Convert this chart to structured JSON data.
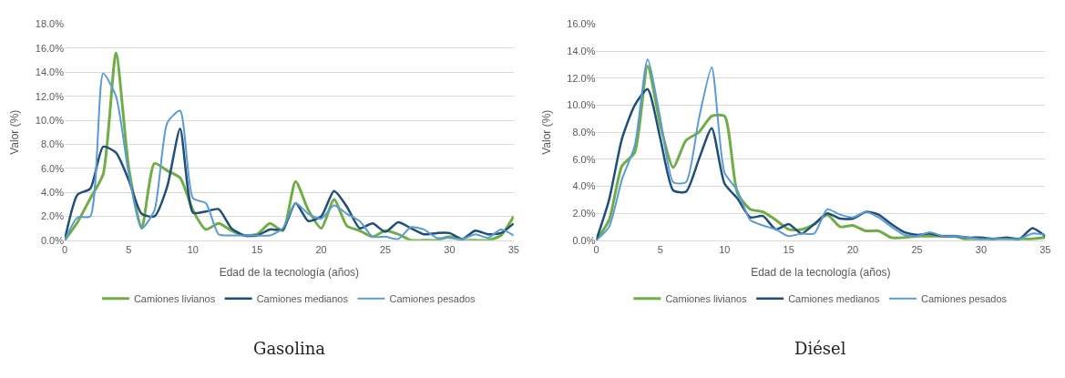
{
  "chart_data": [
    {
      "type": "line",
      "title": "Gasolina",
      "xlabel": "Edad de la tecnología (años)",
      "ylabel": "Valor (%)",
      "x": [
        0,
        1,
        2,
        3,
        4,
        5,
        6,
        7,
        8,
        9,
        10,
        11,
        12,
        13,
        14,
        15,
        16,
        17,
        18,
        19,
        20,
        21,
        22,
        23,
        24,
        25,
        26,
        27,
        28,
        29,
        30,
        31,
        32,
        33,
        34,
        35
      ],
      "series": [
        {
          "name": "Camiones livianos",
          "color": "#70ad47",
          "values": [
            0,
            1.5,
            3.5,
            5.5,
            15.6,
            6,
            1,
            6.4,
            5.8,
            5.2,
            2.5,
            0.9,
            1.4,
            0.8,
            0.4,
            0.5,
            1.4,
            0.8,
            4.9,
            2.5,
            1.0,
            3.4,
            1.2,
            0.8,
            0.3,
            0.8,
            0.5,
            0,
            0,
            0,
            0.3,
            0,
            0,
            0,
            0.4,
            2.0
          ]
        },
        {
          "name": "Camiones medianos",
          "color": "#1f4e79",
          "values": [
            0,
            3.8,
            4.3,
            7.8,
            7.3,
            5.0,
            2.2,
            2.0,
            4.5,
            9.3,
            2.3,
            2.4,
            2.6,
            1.0,
            0.4,
            0.4,
            0.9,
            0.9,
            3.1,
            1.6,
            2.0,
            4.1,
            2.8,
            1.0,
            1.4,
            0.7,
            1.5,
            1.0,
            0.5,
            0.6,
            0.6,
            0.1,
            0.8,
            0.5,
            0.6,
            1.4
          ]
        },
        {
          "name": "Camiones pesados",
          "color": "#5b9bd5",
          "values": [
            0,
            1.9,
            2.0,
            13.9,
            12,
            5.5,
            1.0,
            2.5,
            9.8,
            10.8,
            3.5,
            3.1,
            0.5,
            0.4,
            0.4,
            0.4,
            0.4,
            1.0,
            3.1,
            2.2,
            1.8,
            2.9,
            2.2,
            1.6,
            0.3,
            0.3,
            0.1,
            1.1,
            0.9,
            0.2,
            0.2,
            0.1,
            0.5,
            0.2,
            0.9,
            0.4
          ]
        }
      ],
      "xlim": [
        0,
        35
      ],
      "xticks": [
        0,
        5,
        10,
        15,
        20,
        25,
        30,
        35
      ],
      "ylim": [
        0,
        18
      ],
      "yticks": [
        {
          "value": 0,
          "label": "0.0%"
        },
        {
          "value": 2,
          "label": "2.0%"
        },
        {
          "value": 4,
          "label": "4.0%"
        },
        {
          "value": 6,
          "label": "6.0%"
        },
        {
          "value": 8,
          "label": "8.0%"
        },
        {
          "value": 10,
          "label": "10.0%"
        },
        {
          "value": 12,
          "label": "12.0%"
        },
        {
          "value": 14,
          "label": "14.0%"
        },
        {
          "value": 16,
          "label": "16.0%"
        },
        {
          "value": 18,
          "label": "18.0%"
        }
      ],
      "grid": "y",
      "legend": "bottom",
      "marker": "none",
      "line_style": "solid"
    },
    {
      "type": "line",
      "title": "Diésel",
      "xlabel": "Edad de la tecnología (años)",
      "ylabel": "Valor (%)",
      "x": [
        0,
        1,
        2,
        3,
        4,
        5,
        6,
        7,
        8,
        9,
        10,
        11,
        12,
        13,
        14,
        15,
        16,
        17,
        18,
        19,
        20,
        21,
        22,
        23,
        24,
        25,
        26,
        27,
        28,
        29,
        30,
        31,
        32,
        33,
        34,
        35
      ],
      "series": [
        {
          "name": "Camiones livianos",
          "color": "#70ad47",
          "values": [
            0,
            1.5,
            5.5,
            6.5,
            12.9,
            8.5,
            5.4,
            7.4,
            8.0,
            9.2,
            9.2,
            3.5,
            2.3,
            2.1,
            1.5,
            0.8,
            0.8,
            1.2,
            1.9,
            1.0,
            1.1,
            0.7,
            0.7,
            0.2,
            0.2,
            0.3,
            0.3,
            0.3,
            0.3,
            0.0,
            0.0,
            0.1,
            0.1,
            0.1,
            0.1,
            0.2
          ]
        },
        {
          "name": "Camiones medianos",
          "color": "#1f4e79",
          "values": [
            0,
            3,
            7.5,
            10,
            11.2,
            7.5,
            3.7,
            3.6,
            6,
            8.3,
            4.2,
            3.1,
            1.7,
            1.8,
            0.8,
            1.2,
            0.5,
            1.2,
            2.0,
            1.6,
            1.6,
            2.1,
            1.9,
            1.2,
            0.6,
            0.4,
            0.5,
            0.3,
            0.3,
            0.2,
            0.2,
            0.1,
            0.2,
            0.1,
            0.9,
            0.3
          ]
        },
        {
          "name": "Camiones pesados",
          "color": "#5b9bd5",
          "values": [
            0,
            1,
            4.5,
            7,
            13.4,
            9,
            4.3,
            4.3,
            9,
            12.8,
            5,
            3.7,
            1.5,
            1.1,
            0.8,
            0.3,
            0.5,
            0.5,
            2.3,
            1.9,
            1.7,
            2.1,
            1.7,
            1.0,
            0.4,
            0.3,
            0.6,
            0.3,
            0.3,
            0.2,
            0.1,
            0.1,
            0.1,
            0.1,
            0.5,
            0.4
          ]
        }
      ],
      "xlim": [
        0,
        35
      ],
      "xticks": [
        0,
        5,
        10,
        15,
        20,
        25,
        30,
        35
      ],
      "ylim": [
        0,
        16
      ],
      "yticks": [
        {
          "value": 0,
          "label": "0.0%"
        },
        {
          "value": 2,
          "label": "2.0%"
        },
        {
          "value": 4,
          "label": "4.0%"
        },
        {
          "value": 6,
          "label": "6.0%"
        },
        {
          "value": 8,
          "label": "8.0%"
        },
        {
          "value": 10,
          "label": "10.0%"
        },
        {
          "value": 12,
          "label": "12.0%"
        },
        {
          "value": 14,
          "label": "14.0%"
        },
        {
          "value": 16,
          "label": "16.0%"
        }
      ],
      "grid": "y",
      "legend": "bottom",
      "marker": "none",
      "line_style": "solid"
    }
  ]
}
